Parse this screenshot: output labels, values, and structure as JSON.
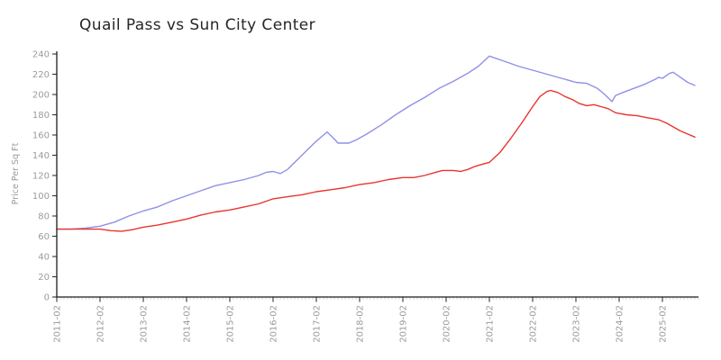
{
  "chart_data": {
    "type": "line",
    "title": "Quail Pass vs Sun City Center",
    "xlabel": "",
    "ylabel": "Price Per Sq Ft",
    "ylim": [
      0,
      240
    ],
    "y_ticks": [
      0,
      20,
      40,
      60,
      80,
      100,
      120,
      140,
      160,
      180,
      200,
      220,
      240
    ],
    "x_ticks": [
      "2011-02",
      "2012-02",
      "2013-02",
      "2014-02",
      "2015-02",
      "2016-02",
      "2017-02",
      "2018-02",
      "2019-02",
      "2020-02",
      "2021-02",
      "2022-02",
      "2023-02",
      "2024-02",
      "2025-02"
    ],
    "x_start": "2011-02",
    "x_end": "2025-12",
    "grid": false,
    "legend_position": "none",
    "axis_color": "#1c1c1c",
    "tick_label_color": "#9b9b9b",
    "minor_tick_color": "#c9c9c9",
    "series": [
      {
        "name": "Quail Pass",
        "color": "#8f90e8",
        "points": [
          [
            "2011-02",
            67
          ],
          [
            "2011-06",
            67
          ],
          [
            "2011-10",
            68
          ],
          [
            "2012-02",
            70
          ],
          [
            "2012-06",
            74
          ],
          [
            "2012-10",
            80
          ],
          [
            "2013-02",
            85
          ],
          [
            "2013-06",
            89
          ],
          [
            "2013-10",
            95
          ],
          [
            "2014-02",
            100
          ],
          [
            "2014-06",
            105
          ],
          [
            "2014-10",
            110
          ],
          [
            "2015-02",
            113
          ],
          [
            "2015-06",
            116
          ],
          [
            "2015-10",
            120
          ],
          [
            "2015-12",
            123
          ],
          [
            "2016-02",
            124
          ],
          [
            "2016-04",
            122
          ],
          [
            "2016-06",
            126
          ],
          [
            "2016-08",
            133
          ],
          [
            "2016-10",
            140
          ],
          [
            "2016-12",
            147
          ],
          [
            "2017-02",
            154
          ],
          [
            "2017-04",
            160
          ],
          [
            "2017-05",
            163
          ],
          [
            "2017-07",
            156
          ],
          [
            "2017-08",
            152
          ],
          [
            "2017-11",
            152
          ],
          [
            "2018-01",
            155
          ],
          [
            "2018-04",
            161
          ],
          [
            "2018-08",
            170
          ],
          [
            "2018-12",
            180
          ],
          [
            "2019-04",
            189
          ],
          [
            "2019-08",
            197
          ],
          [
            "2019-12",
            206
          ],
          [
            "2020-04",
            213
          ],
          [
            "2020-08",
            221
          ],
          [
            "2020-11",
            228
          ],
          [
            "2021-02",
            238
          ],
          [
            "2021-06",
            233
          ],
          [
            "2021-10",
            228
          ],
          [
            "2022-02",
            224
          ],
          [
            "2022-06",
            220
          ],
          [
            "2022-10",
            216
          ],
          [
            "2023-02",
            212
          ],
          [
            "2023-05",
            211
          ],
          [
            "2023-08",
            206
          ],
          [
            "2023-10",
            200
          ],
          [
            "2023-12",
            193
          ],
          [
            "2024-01",
            199
          ],
          [
            "2024-03",
            202
          ],
          [
            "2024-06",
            206
          ],
          [
            "2024-09",
            210
          ],
          [
            "2024-12",
            215
          ],
          [
            "2025-01",
            217
          ],
          [
            "2025-02",
            216
          ],
          [
            "2025-04",
            221
          ],
          [
            "2025-05",
            222
          ],
          [
            "2025-07",
            217
          ],
          [
            "2025-09",
            212
          ],
          [
            "2025-11",
            209
          ]
        ]
      },
      {
        "name": "Sun City Center",
        "color": "#e8352e",
        "points": [
          [
            "2011-02",
            67
          ],
          [
            "2011-06",
            67
          ],
          [
            "2011-10",
            67
          ],
          [
            "2012-02",
            67
          ],
          [
            "2012-05",
            65.5
          ],
          [
            "2012-08",
            65
          ],
          [
            "2012-11",
            66.5
          ],
          [
            "2013-02",
            69
          ],
          [
            "2013-06",
            71
          ],
          [
            "2013-10",
            74
          ],
          [
            "2014-02",
            77
          ],
          [
            "2014-06",
            81
          ],
          [
            "2014-10",
            84
          ],
          [
            "2015-02",
            86
          ],
          [
            "2015-06",
            89
          ],
          [
            "2015-10",
            92
          ],
          [
            "2016-02",
            97
          ],
          [
            "2016-06",
            99
          ],
          [
            "2016-10",
            101
          ],
          [
            "2017-02",
            104
          ],
          [
            "2017-06",
            106
          ],
          [
            "2017-10",
            108
          ],
          [
            "2018-02",
            111
          ],
          [
            "2018-06",
            113
          ],
          [
            "2018-10",
            116
          ],
          [
            "2019-02",
            118
          ],
          [
            "2019-05",
            118
          ],
          [
            "2019-08",
            120
          ],
          [
            "2019-11",
            123
          ],
          [
            "2020-01",
            125
          ],
          [
            "2020-04",
            125
          ],
          [
            "2020-06",
            124
          ],
          [
            "2020-08",
            126
          ],
          [
            "2020-10",
            129
          ],
          [
            "2020-12",
            131
          ],
          [
            "2021-02",
            133
          ],
          [
            "2021-05",
            143
          ],
          [
            "2021-08",
            157
          ],
          [
            "2021-11",
            172
          ],
          [
            "2022-02",
            188
          ],
          [
            "2022-04",
            198
          ],
          [
            "2022-06",
            203
          ],
          [
            "2022-07",
            204
          ],
          [
            "2022-09",
            202
          ],
          [
            "2022-11",
            198
          ],
          [
            "2023-01",
            195
          ],
          [
            "2023-03",
            191
          ],
          [
            "2023-05",
            189
          ],
          [
            "2023-07",
            190
          ],
          [
            "2023-09",
            188
          ],
          [
            "2023-11",
            186
          ],
          [
            "2024-01",
            182
          ],
          [
            "2024-04",
            180
          ],
          [
            "2024-07",
            179
          ],
          [
            "2024-10",
            177
          ],
          [
            "2025-01",
            175
          ],
          [
            "2025-03",
            172
          ],
          [
            "2025-05",
            168
          ],
          [
            "2025-07",
            164
          ],
          [
            "2025-09",
            161
          ],
          [
            "2025-11",
            158
          ]
        ]
      }
    ]
  }
}
